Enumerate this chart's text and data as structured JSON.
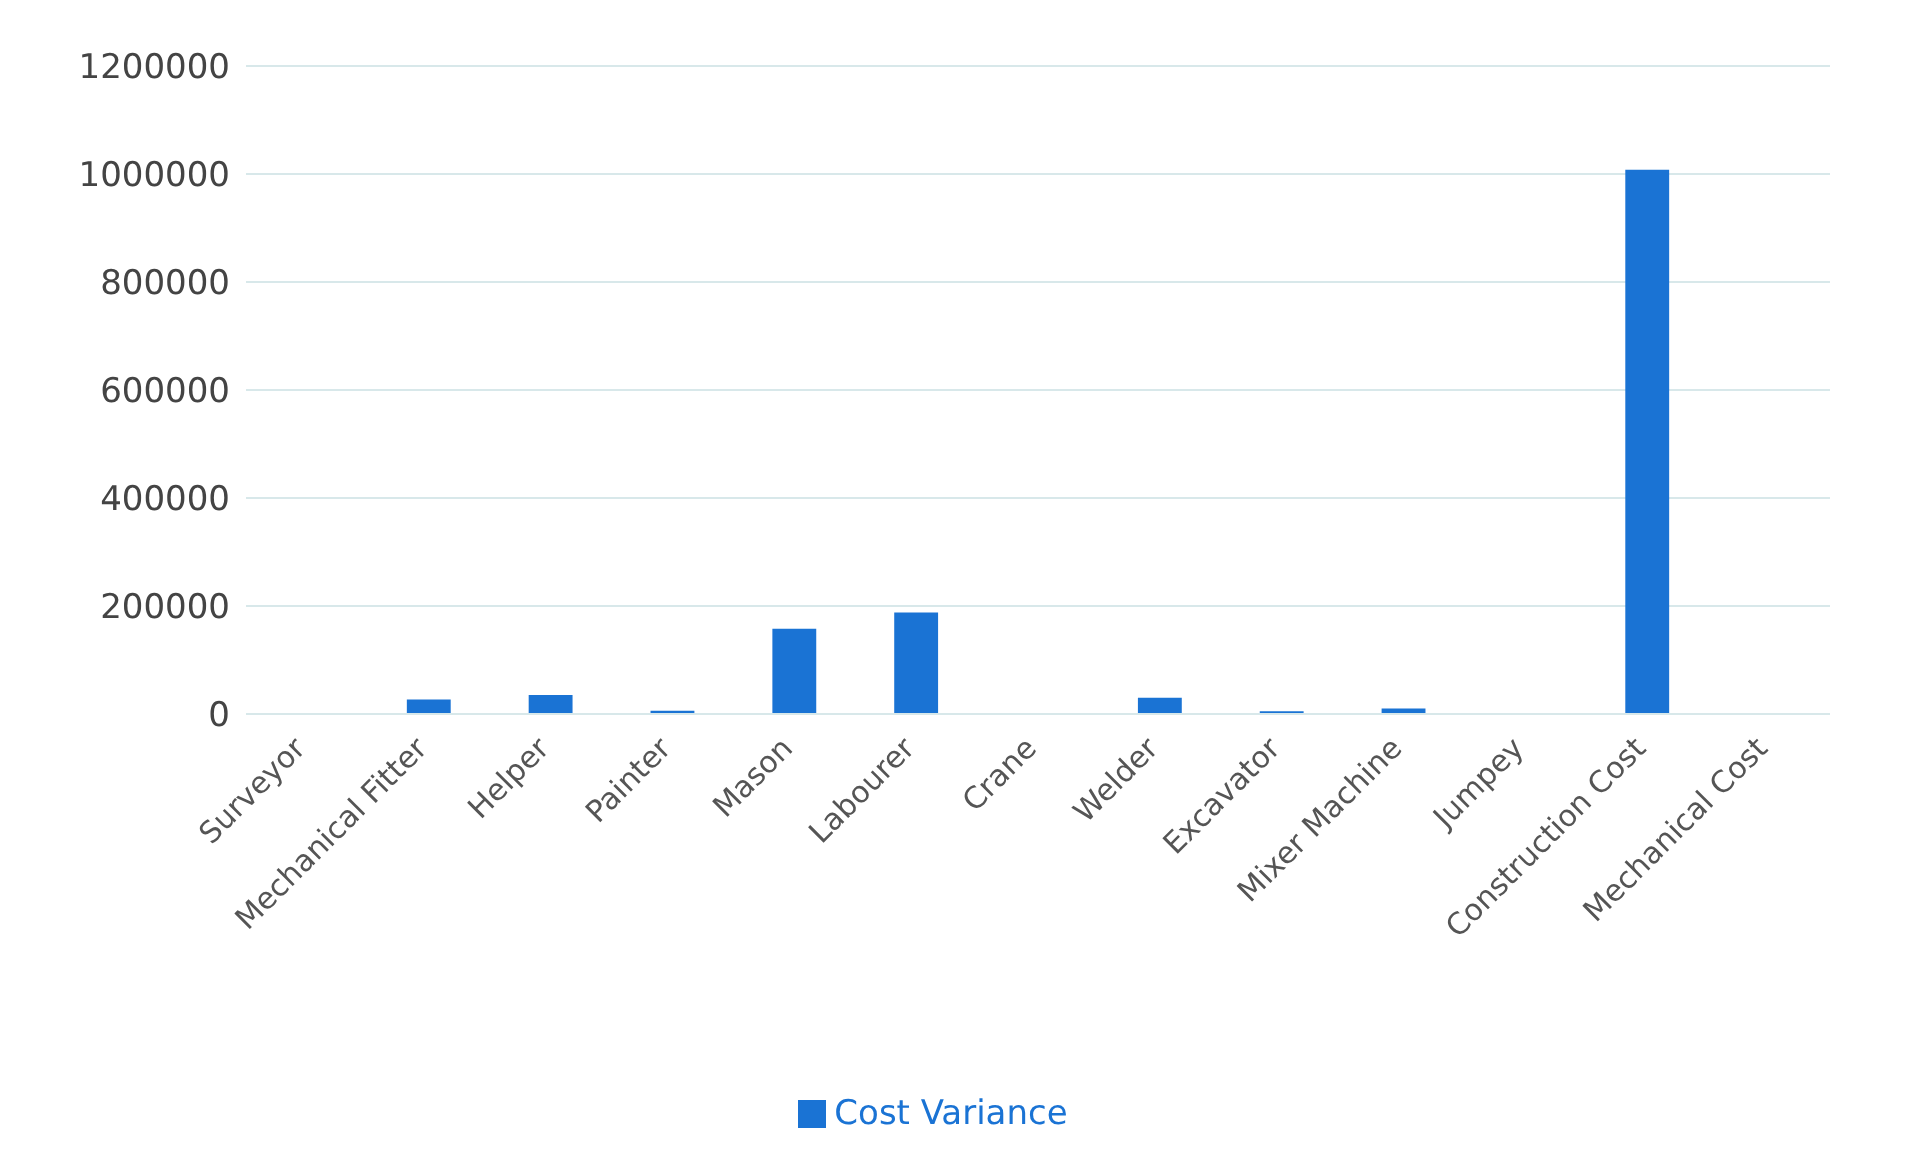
{
  "chart_data": {
    "type": "bar",
    "categories": [
      "Surveyor",
      "Mechanical Fitter",
      "Helper",
      "Painter",
      "Mason",
      "Labourer",
      "Crane",
      "Welder",
      "Excavator",
      "Mixer Machine",
      "Jumpey",
      "Construction Cost",
      "Mechanical Cost"
    ],
    "series": [
      {
        "name": "Cost Variance",
        "color": "#1a73d4",
        "values": [
          0,
          27000,
          35000,
          6000,
          158000,
          188000,
          0,
          30000,
          5000,
          10000,
          0,
          1008000,
          0
        ]
      }
    ],
    "ylim": [
      0,
      1200000
    ],
    "yticks": [
      0,
      200000,
      400000,
      600000,
      800000,
      1000000,
      1200000
    ],
    "grid": "y",
    "legend": "bottom"
  }
}
